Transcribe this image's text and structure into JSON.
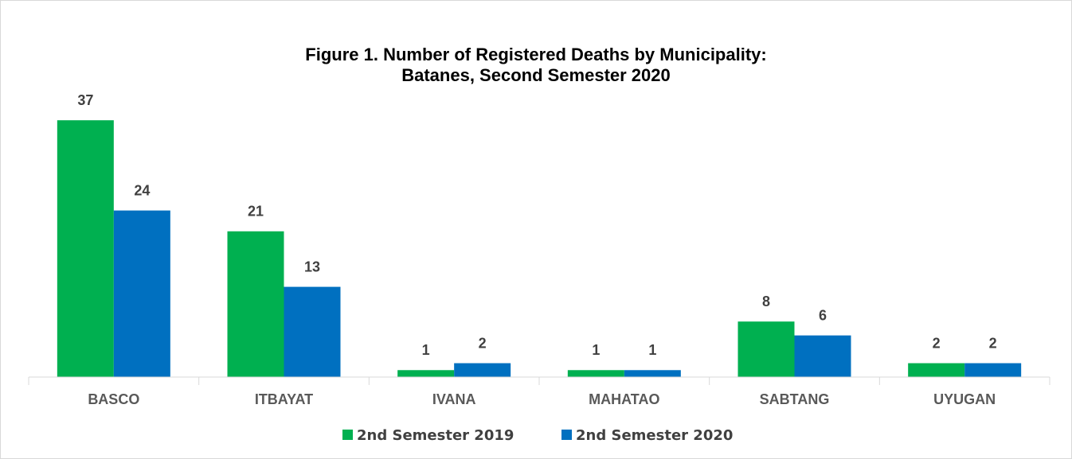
{
  "chart_data": {
    "type": "bar",
    "title": "Figure 1. Number of  Registered Deaths by Municipality:",
    "subtitle": "Batanes, Second Semester 2020",
    "categories": [
      "BASCO",
      "ITBAYAT",
      "IVANA",
      "MAHATAO",
      "SABTANG",
      "UYUGAN"
    ],
    "series": [
      {
        "name": "2nd Semester 2019",
        "color": "#00b050",
        "values": [
          37,
          21,
          1,
          1,
          8,
          2
        ]
      },
      {
        "name": "2nd Semester 2020",
        "color": "#0070c0",
        "values": [
          24,
          13,
          2,
          1,
          6,
          2
        ]
      }
    ],
    "ylim": [
      0,
      40
    ],
    "legend": "bottom"
  }
}
